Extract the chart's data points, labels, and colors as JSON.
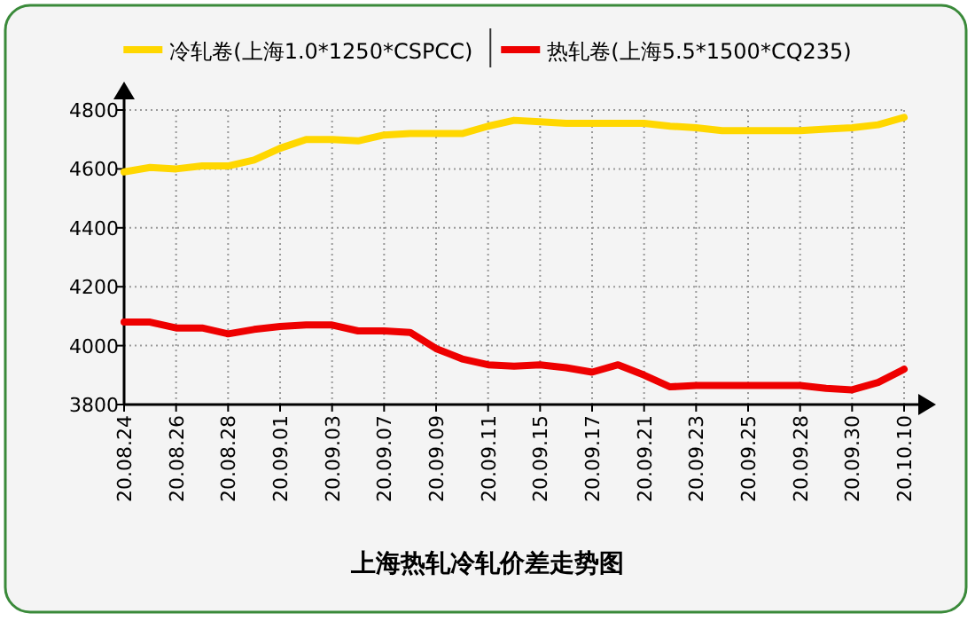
{
  "chart_data": {
    "type": "line",
    "title": "上海热轧冷轧价差走势图",
    "categories": [
      "20.08.24",
      null,
      "20.08.26",
      null,
      "20.08.28",
      null,
      "20.09.01",
      null,
      "20.09.03",
      null,
      "20.09.07",
      null,
      "20.09.09",
      null,
      "20.09.11",
      null,
      "20.09.15",
      null,
      "20.09.17",
      null,
      "20.09.21",
      null,
      "20.09.23",
      null,
      "20.09.25",
      null,
      "20.09.28",
      null,
      "20.09.30",
      null,
      "20.10.10"
    ],
    "series": [
      {
        "name": "冷轧卷(上海1.0*1250*CSPCC)",
        "color": "#ffd700",
        "values": [
          4590,
          4605,
          4600,
          4610,
          4610,
          4630,
          4670,
          4700,
          4700,
          4695,
          4715,
          4720,
          4720,
          4720,
          4745,
          4765,
          4760,
          4755,
          4755,
          4755,
          4755,
          4745,
          4740,
          4730,
          4730,
          4730,
          4730,
          4735,
          4740,
          4750,
          4775
        ]
      },
      {
        "name": "热轧卷(上海5.5*1500*CQ235)",
        "color": "#ee0000",
        "values": [
          4080,
          4080,
          4060,
          4060,
          4040,
          4055,
          4065,
          4070,
          4070,
          4050,
          4050,
          4045,
          3990,
          3955,
          3935,
          3930,
          3935,
          3925,
          3910,
          3935,
          3900,
          3860,
          3865,
          3865,
          3865,
          3865,
          3865,
          3855,
          3850,
          3875,
          3920
        ]
      }
    ],
    "ylim": [
      3800,
      4800
    ],
    "yticks": [
      3800,
      4000,
      4200,
      4400,
      4600,
      4800
    ],
    "grid": true,
    "legend": "top",
    "line_style": "solid"
  }
}
